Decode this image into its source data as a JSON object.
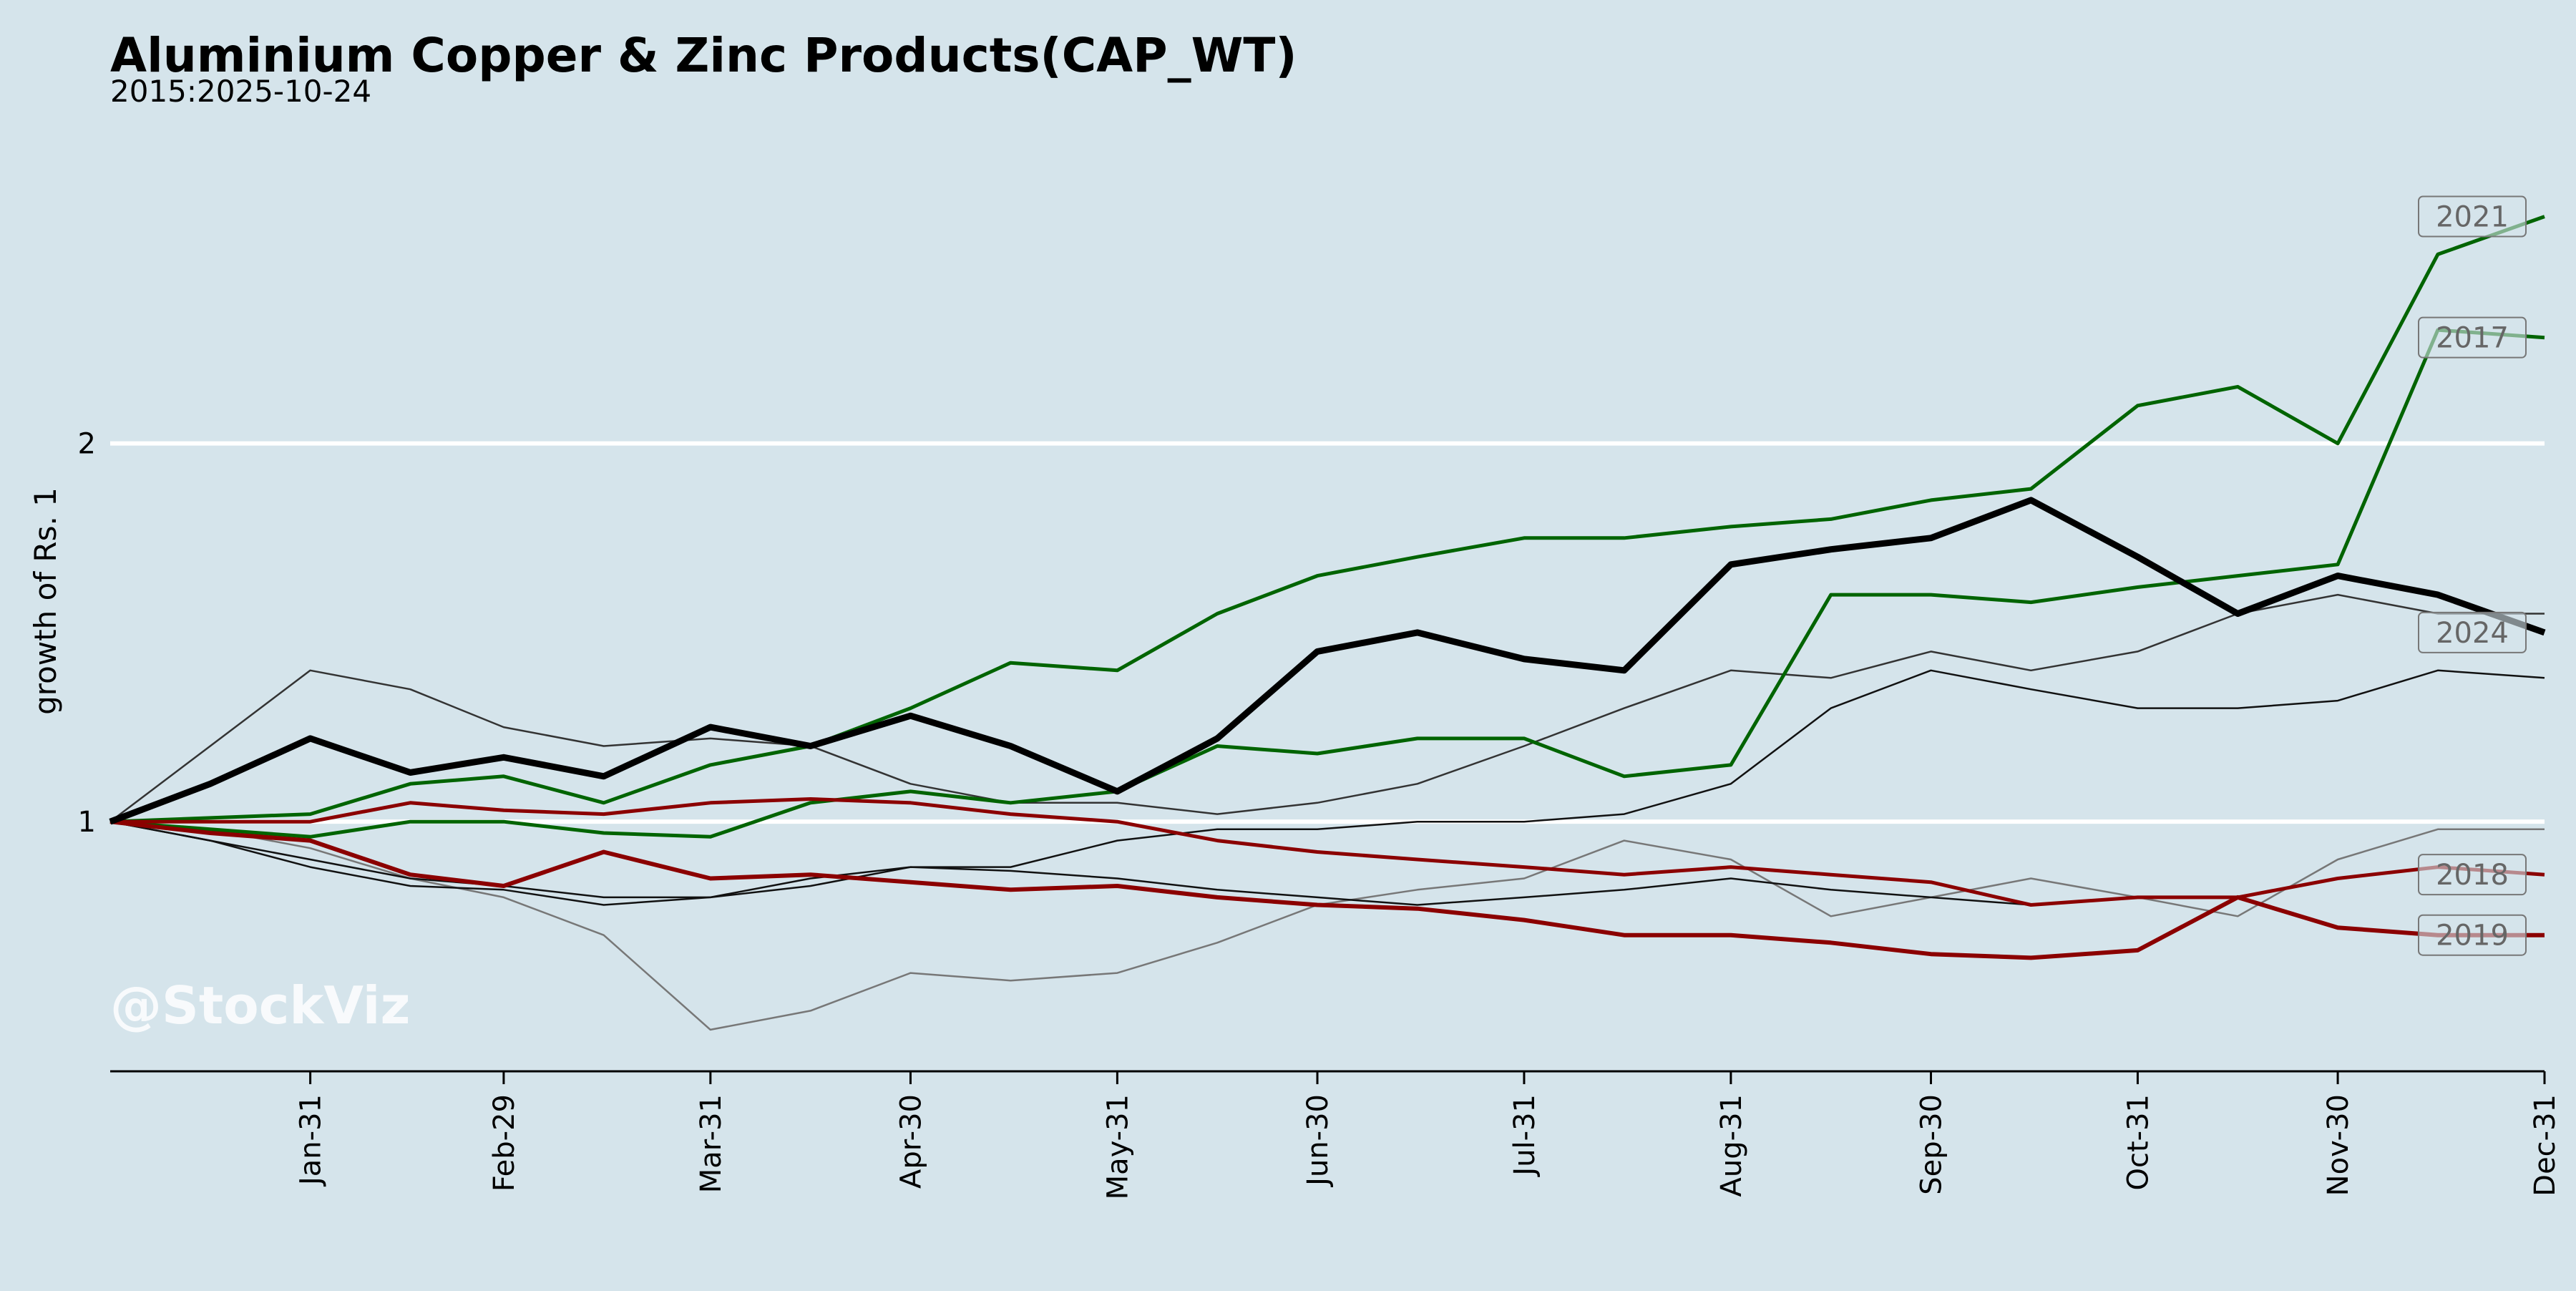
{
  "chart_data": {
    "type": "line",
    "title": "Aluminium Copper & Zinc Products(CAP_WT)",
    "subtitle": "2015:2025-10-24",
    "y_label": "growth of Rs. 1",
    "watermark": "@StockViz",
    "x": [
      1,
      16,
      31,
      46,
      60,
      75,
      91,
      106,
      121,
      136,
      152,
      167,
      182,
      197,
      213,
      228,
      244,
      259,
      274,
      289,
      305,
      320,
      335,
      350,
      366
    ],
    "xlim": [
      1,
      366
    ],
    "xticks": [
      {
        "value": 31,
        "label": "Jan-31"
      },
      {
        "value": 60,
        "label": "Feb-29"
      },
      {
        "value": 91,
        "label": "Mar-31"
      },
      {
        "value": 121,
        "label": "Apr-30"
      },
      {
        "value": 152,
        "label": "May-31"
      },
      {
        "value": 182,
        "label": "Jun-30"
      },
      {
        "value": 213,
        "label": "Jul-31"
      },
      {
        "value": 244,
        "label": "Aug-31"
      },
      {
        "value": 274,
        "label": "Sep-30"
      },
      {
        "value": 305,
        "label": "Oct-31"
      },
      {
        "value": 335,
        "label": "Nov-30"
      },
      {
        "value": 366,
        "label": "Dec-31"
      }
    ],
    "ylim": [
      0.34,
      2.76
    ],
    "yticks": [
      1,
      2
    ],
    "grid": true,
    "series": [
      {
        "color": "#333333",
        "linewidth": 2.5,
        "values": [
          1.0,
          1.2,
          1.4,
          1.35,
          1.25,
          1.2,
          1.22,
          1.2,
          1.1,
          1.05,
          1.05,
          1.02,
          1.05,
          1.1,
          1.2,
          1.3,
          1.4,
          1.38,
          1.45,
          1.4,
          1.45,
          1.55,
          1.6,
          1.55,
          1.55
        ]
      },
      {
        "color": "#777777",
        "linewidth": 2.5,
        "values": [
          1.0,
          0.98,
          0.93,
          0.85,
          0.8,
          0.7,
          0.45,
          0.5,
          0.6,
          0.58,
          0.6,
          0.68,
          0.78,
          0.82,
          0.85,
          0.95,
          0.9,
          0.75,
          0.8,
          0.85,
          0.8,
          0.75,
          0.9,
          0.98,
          0.98
        ]
      },
      {
        "color": "#111111",
        "linewidth": 2.5,
        "values": [
          1.0,
          0.95,
          0.9,
          0.85,
          0.83,
          0.8,
          0.8,
          0.85,
          0.88,
          0.88,
          0.95,
          0.98,
          0.98,
          1.0,
          1.0,
          1.02,
          1.1,
          1.3,
          1.4,
          1.35,
          1.3,
          1.3,
          1.32,
          1.4,
          1.38
        ]
      },
      {
        "color": "#111111",
        "linewidth": 2.5,
        "values": [
          1.0,
          0.95,
          0.88,
          0.83,
          0.82,
          0.78,
          0.8,
          0.83,
          0.88,
          0.87,
          0.85,
          0.82,
          0.8,
          0.78,
          0.8,
          0.82,
          0.85,
          0.82,
          0.8,
          0.78,
          null,
          null,
          null,
          null,
          null
        ]
      },
      {
        "name": "2017",
        "color": "#006400",
        "linewidth": 5,
        "values": [
          1.0,
          0.98,
          0.96,
          1.0,
          1.0,
          0.97,
          0.96,
          1.05,
          1.08,
          1.05,
          1.08,
          1.2,
          1.18,
          1.22,
          1.22,
          1.12,
          1.15,
          1.6,
          1.6,
          1.58,
          1.62,
          1.65,
          1.68,
          2.3,
          2.28
        ]
      },
      {
        "name": "2021",
        "color": "#006400",
        "linewidth": 5,
        "values": [
          1.0,
          1.01,
          1.02,
          1.1,
          1.12,
          1.05,
          1.15,
          1.2,
          1.3,
          1.42,
          1.4,
          1.55,
          1.65,
          1.7,
          1.75,
          1.75,
          1.78,
          1.8,
          1.85,
          1.88,
          2.1,
          2.15,
          2.0,
          2.5,
          2.6
        ]
      },
      {
        "name": "2018",
        "color": "#8b0000",
        "linewidth": 5,
        "values": [
          1.0,
          1.0,
          1.0,
          1.05,
          1.03,
          1.02,
          1.05,
          1.06,
          1.05,
          1.02,
          1.0,
          0.95,
          0.92,
          0.9,
          0.88,
          0.86,
          0.88,
          0.86,
          0.84,
          0.78,
          0.8,
          0.8,
          0.85,
          0.88,
          0.86
        ]
      },
      {
        "name": "2019",
        "color": "#8b0000",
        "linewidth": 6,
        "values": [
          1.0,
          0.97,
          0.95,
          0.86,
          0.83,
          0.92,
          0.85,
          0.86,
          0.84,
          0.82,
          0.83,
          0.8,
          0.78,
          0.77,
          0.74,
          0.7,
          0.7,
          0.68,
          0.65,
          0.64,
          0.66,
          0.8,
          0.72,
          0.7,
          0.7
        ]
      },
      {
        "name": "2024",
        "color": "#000000",
        "linewidth": 9,
        "values": [
          1.0,
          1.1,
          1.22,
          1.13,
          1.17,
          1.12,
          1.25,
          1.2,
          1.28,
          1.2,
          1.08,
          1.22,
          1.45,
          1.5,
          1.43,
          1.4,
          1.68,
          1.72,
          1.75,
          1.85,
          1.7,
          1.55,
          1.65,
          1.6,
          1.5
        ]
      }
    ]
  }
}
